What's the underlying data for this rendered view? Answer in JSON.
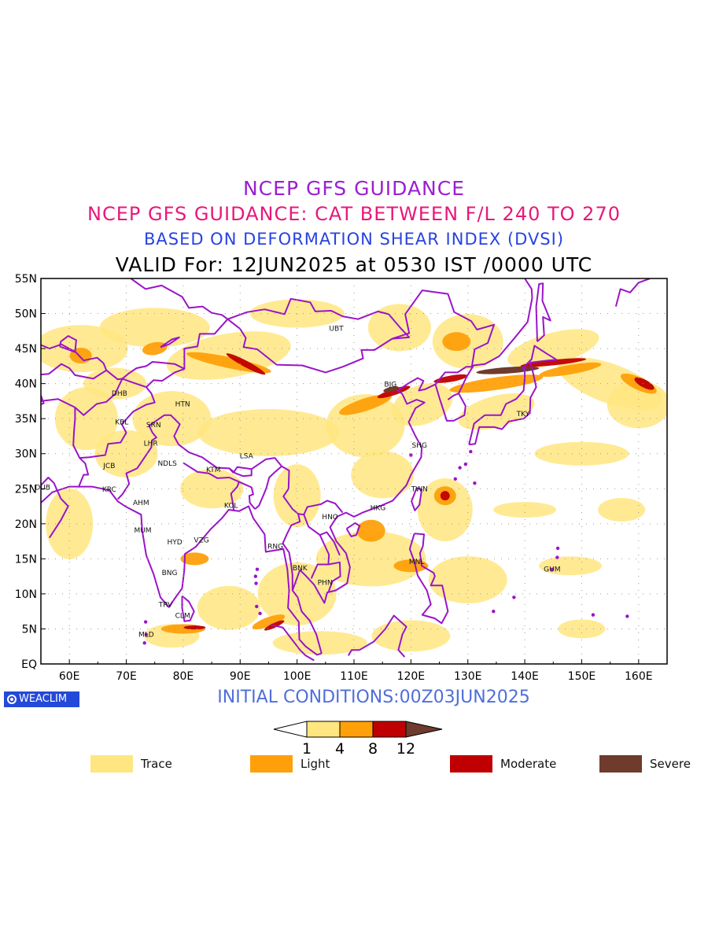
{
  "titles": {
    "line1": "NCEP GFS GUIDANCE",
    "line2": "NCEP GFS GUIDANCE: CAT BETWEEN F/L 240 TO 270",
    "line3": "BASED ON DEFORMATION SHEAR INDEX (DVSI)",
    "line4": "VALID For: 12JUN2025 at 0530 IST /0000 UTC"
  },
  "initial_conditions": "INITIAL CONDITIONS:00Z03JUN2025",
  "branding": {
    "text": "WEACLIM",
    "icon": "copyright-icon"
  },
  "map": {
    "lon_range": [
      55,
      165
    ],
    "lat_range": [
      0,
      55
    ],
    "lon_ticks": [
      "60E",
      "70E",
      "80E",
      "90E",
      "100E",
      "110E",
      "120E",
      "130E",
      "140E",
      "150E",
      "160E"
    ],
    "lat_ticks": [
      "EQ",
      "5N",
      "10N",
      "15N",
      "20N",
      "25N",
      "30N",
      "35N",
      "40N",
      "45N",
      "50N",
      "55N"
    ],
    "grid": "dotted",
    "stations": [
      {
        "code": "UBT",
        "lon": 106.9,
        "lat": 47.9
      },
      {
        "code": "BJG",
        "lon": 116.4,
        "lat": 39.9
      },
      {
        "code": "TKY",
        "lon": 139.7,
        "lat": 35.7
      },
      {
        "code": "SHG",
        "lon": 121.5,
        "lat": 31.2
      },
      {
        "code": "TWN",
        "lon": 121.5,
        "lat": 25.0
      },
      {
        "code": "HKG",
        "lon": 114.2,
        "lat": 22.3
      },
      {
        "code": "HNO",
        "lon": 105.8,
        "lat": 21.0
      },
      {
        "code": "MNL",
        "lon": 121.0,
        "lat": 14.6
      },
      {
        "code": "GUM",
        "lon": 144.8,
        "lat": 13.5
      },
      {
        "code": "BNK",
        "lon": 100.5,
        "lat": 13.7
      },
      {
        "code": "PHN",
        "lon": 104.9,
        "lat": 11.6
      },
      {
        "code": "RNG",
        "lon": 96.2,
        "lat": 16.8
      },
      {
        "code": "DHB",
        "lon": 68.8,
        "lat": 38.6
      },
      {
        "code": "HTN",
        "lon": 79.9,
        "lat": 37.1
      },
      {
        "code": "KBL",
        "lon": 69.2,
        "lat": 34.5
      },
      {
        "code": "SRN",
        "lon": 74.8,
        "lat": 34.1
      },
      {
        "code": "LHR",
        "lon": 74.3,
        "lat": 31.5
      },
      {
        "code": "NDLS",
        "lon": 77.2,
        "lat": 28.6
      },
      {
        "code": "LSA",
        "lon": 91.1,
        "lat": 29.7
      },
      {
        "code": "KTM",
        "lon": 85.3,
        "lat": 27.7
      },
      {
        "code": "JCB",
        "lon": 67.0,
        "lat": 28.3
      },
      {
        "code": "DUB",
        "lon": 55.3,
        "lat": 25.2
      },
      {
        "code": "KRC",
        "lon": 67.0,
        "lat": 24.9
      },
      {
        "code": "AHM",
        "lon": 72.6,
        "lat": 23.0
      },
      {
        "code": "KOL",
        "lon": 88.4,
        "lat": 22.6
      },
      {
        "code": "MUM",
        "lon": 72.9,
        "lat": 19.1
      },
      {
        "code": "HYD",
        "lon": 78.5,
        "lat": 17.4
      },
      {
        "code": "VZG",
        "lon": 83.2,
        "lat": 17.7
      },
      {
        "code": "BNG",
        "lon": 77.6,
        "lat": 13.0
      },
      {
        "code": "TRV",
        "lon": 76.9,
        "lat": 8.5
      },
      {
        "code": "CLM",
        "lon": 79.9,
        "lat": 6.9
      },
      {
        "code": "MLD",
        "lon": 73.5,
        "lat": 4.2
      }
    ],
    "colors": {
      "trace": "#ffe680",
      "light": "#ffa00a",
      "moderate": "#c00000",
      "severe": "#6e3b2d",
      "coast": "#9a14c8"
    }
  },
  "colorbar": {
    "ticks": [
      "1",
      "4",
      "8",
      "12"
    ]
  },
  "legend": [
    {
      "label": "Trace",
      "color": "#ffe680"
    },
    {
      "label": "Light",
      "color": "#ffa00a"
    },
    {
      "label": "Moderate",
      "color": "#c00000"
    },
    {
      "label": "Severe",
      "color": "#6e3b2d"
    }
  ]
}
